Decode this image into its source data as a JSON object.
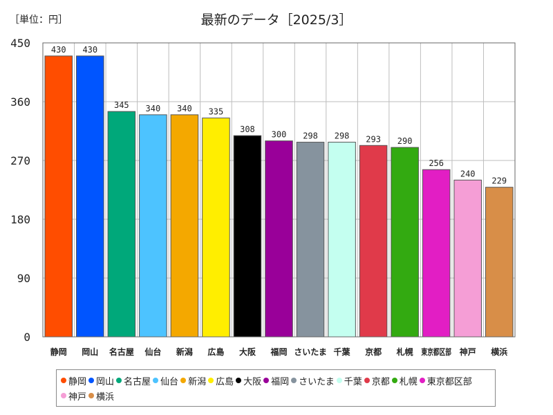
{
  "unit_label": "［単位：円］",
  "chart_data": {
    "type": "bar",
    "title": "最新のデータ［2025/3］",
    "xlabel": "",
    "ylabel": "",
    "ylim": [
      0,
      450
    ],
    "yticks": [
      0,
      90,
      180,
      270,
      360,
      450
    ],
    "grid": true,
    "legend_position": "bottom",
    "categories": [
      "静岡",
      "岡山",
      "名古屋",
      "仙台",
      "新潟",
      "広島",
      "大阪",
      "福岡",
      "さいたま",
      "千葉",
      "京都",
      "札幌",
      "東京都区部",
      "神戸",
      "横浜"
    ],
    "values": [
      430,
      430,
      345,
      340,
      340,
      335,
      308,
      300,
      298,
      298,
      293,
      290,
      256,
      240,
      229
    ],
    "colors": [
      "#ff4d00",
      "#0055ff",
      "#00a87a",
      "#4dc3ff",
      "#f4a800",
      "#ffee00",
      "#000000",
      "#990099",
      "#86939e",
      "#c4fff0",
      "#e03a4a",
      "#33aa11",
      "#e21ec4",
      "#f59ed6",
      "#d88e48"
    ]
  }
}
